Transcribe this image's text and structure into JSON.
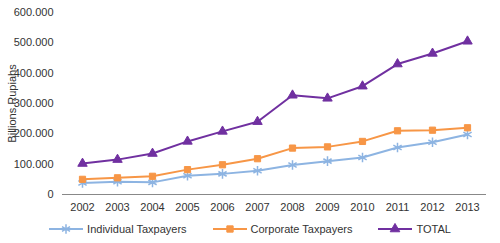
{
  "chart_data": {
    "type": "line",
    "y_label": "Billions Rupiahs",
    "categories": [
      "2002",
      "2003",
      "2004",
      "2005",
      "2006",
      "2007",
      "2008",
      "2009",
      "2010",
      "2011",
      "2012",
      "2013"
    ],
    "series": [
      {
        "name": "Individual Taxpayers",
        "color": "#8db4e2",
        "marker": "asterisk",
        "values": [
          38000,
          42000,
          40000,
          62000,
          68000,
          78000,
          97000,
          110000,
          122000,
          155000,
          172000,
          198000
        ]
      },
      {
        "name": "Corporate Taxpayers",
        "color": "#f79646",
        "marker": "square",
        "values": [
          50000,
          55000,
          60000,
          82000,
          98000,
          118000,
          153000,
          157000,
          175000,
          210000,
          212000,
          220000
        ]
      },
      {
        "name": "TOTAL",
        "color": "#7030a0",
        "marker": "triangle",
        "values": [
          102000,
          115000,
          135000,
          175000,
          208000,
          240000,
          327000,
          317000,
          357000,
          430000,
          465000,
          505000
        ]
      }
    ],
    "ylim": [
      0,
      600000
    ],
    "yticks": [
      0,
      {
        "value": 100000,
        "label": "100.000"
      },
      {
        "value": 200000,
        "label": "200.000"
      },
      {
        "value": 300000,
        "label": "300.000"
      },
      {
        "value": 400000,
        "label": "400.000"
      },
      {
        "value": 500000,
        "label": "500.000"
      },
      {
        "value": 600000,
        "label": "600.000"
      }
    ],
    "grid": false,
    "legend": "bottom"
  }
}
